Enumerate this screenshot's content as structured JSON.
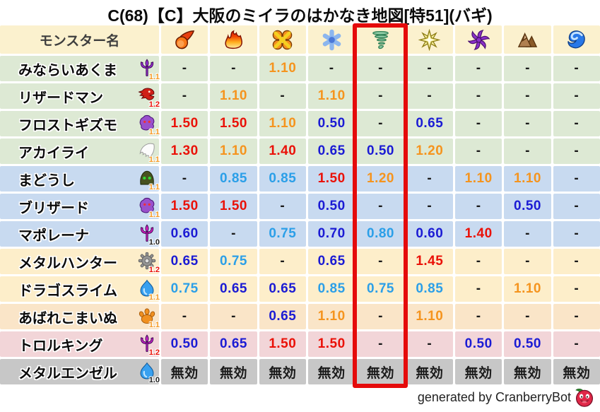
{
  "title": "C(68)【C】大阪のミイラのはかなき地図[特51](バギ)",
  "footer": {
    "text": "generated by CranberryBot",
    "logo": "cranberry-bot-logo"
  },
  "table": {
    "name_header": "モンスター名",
    "header_bg": "#fbf1ce",
    "element_columns": [
      {
        "icon": "fireball-icon"
      },
      {
        "icon": "flame-icon"
      },
      {
        "icon": "burst-icon"
      },
      {
        "icon": "snowflake-icon"
      },
      {
        "icon": "tornado-icon"
      },
      {
        "icon": "sparkle-icon"
      },
      {
        "icon": "pinwheel-icon"
      },
      {
        "icon": "mountain-icon"
      },
      {
        "icon": "wave-icon"
      }
    ],
    "highlighted_column_index": 4,
    "highlight_color": "#e50b0b",
    "immune_text": "無効",
    "value_colors": {
      "resist_strong": "#1b1bd4",
      "resist_mild": "#2b9fe8",
      "weak_mild": "#f5941e",
      "weak_strong": "#ea1108",
      "neutral": "#1a1a1a"
    },
    "rows": [
      {
        "name": "みならいあくま",
        "icon": "trident-icon",
        "icon_color": "#9a30d8",
        "badge": "1.1",
        "badge_color": "#f59a23",
        "row_color": "#dde9d4",
        "values": [
          "-",
          "-",
          "1.10",
          "-",
          "-",
          "-",
          "-",
          "-",
          "-"
        ]
      },
      {
        "name": "リザードマン",
        "icon": "dragon-icon",
        "icon_color": "#d02018",
        "badge": "1.2",
        "badge_color": "#ea1108",
        "row_color": "#dde9d4",
        "values": [
          "-",
          "1.10",
          "-",
          "1.10",
          "-",
          "-",
          "-",
          "-",
          "-"
        ]
      },
      {
        "name": "フロストギズモ",
        "icon": "ghost-icon",
        "icon_color": "#9a50cc",
        "badge": "1.1",
        "badge_color": "#f59a23",
        "row_color": "#dde9d4",
        "values": [
          "1.50",
          "1.50",
          "1.10",
          "0.50",
          "-",
          "0.65",
          "-",
          "-",
          "-"
        ]
      },
      {
        "name": "アカイライ",
        "icon": "wing-icon",
        "icon_color": "#fcfcfc",
        "badge": "1.1",
        "badge_color": "#f59a23",
        "row_color": "#dde9d4",
        "values": [
          "1.30",
          "1.10",
          "1.40",
          "0.65",
          "0.50",
          "1.20",
          "-",
          "-",
          "-"
        ]
      },
      {
        "name": "まどうし",
        "icon": "hood-icon",
        "icon_color": "#4a5524",
        "badge": "1.1",
        "badge_color": "#f59a23",
        "row_color": "#c8daf0",
        "values": [
          "-",
          "0.85",
          "0.85",
          "1.50",
          "1.20",
          "-",
          "1.10",
          "1.10",
          "-"
        ]
      },
      {
        "name": "ブリザード",
        "icon": "ghost-icon",
        "icon_color": "#9a50cc",
        "badge": "1.1",
        "badge_color": "#f59a23",
        "row_color": "#c8daf0",
        "values": [
          "1.50",
          "1.50",
          "-",
          "0.50",
          "-",
          "-",
          "-",
          "0.50",
          "-"
        ]
      },
      {
        "name": "マポレーナ",
        "icon": "trident-icon",
        "icon_color": "#e020c8",
        "badge": "1.0",
        "badge_color": "#1a1a1a",
        "row_color": "#c8daf0",
        "values": [
          "0.60",
          "-",
          "0.75",
          "0.70",
          "0.80",
          "0.60",
          "1.40",
          "-",
          "-"
        ]
      },
      {
        "name": "メタルハンター",
        "icon": "gear-icon",
        "icon_color": "#949494",
        "badge": "1.2",
        "badge_color": "#ea1108",
        "row_color": "#fdeeca",
        "values": [
          "0.65",
          "0.75",
          "-",
          "0.65",
          "-",
          "1.45",
          "-",
          "-",
          "-"
        ]
      },
      {
        "name": "ドラゴスライム",
        "icon": "slime-icon",
        "icon_color": "#38a0f0",
        "badge": "1.1",
        "badge_color": "#f59a23",
        "row_color": "#fdeeca",
        "values": [
          "0.75",
          "0.65",
          "0.65",
          "0.85",
          "0.75",
          "0.85",
          "-",
          "1.10",
          "-"
        ]
      },
      {
        "name": "あばれこまいぬ",
        "icon": "paw-icon",
        "icon_color": "#f09020",
        "badge": "1.1",
        "badge_color": "#f59a23",
        "row_color": "#fae5c8",
        "values": [
          "-",
          "-",
          "0.65",
          "1.10",
          "-",
          "1.10",
          "-",
          "-",
          "-"
        ]
      },
      {
        "name": "トロルキング",
        "icon": "trident-icon",
        "icon_color": "#cc22cc",
        "badge": "1.2",
        "badge_color": "#ea1108",
        "row_color": "#f2d5d8",
        "values": [
          "0.50",
          "0.65",
          "1.50",
          "1.50",
          "-",
          "-",
          "0.50",
          "0.50",
          "-"
        ]
      },
      {
        "name": "メタルエンゼル",
        "icon": "slime-icon",
        "icon_color": "#38a0f0",
        "badge": "1.0",
        "badge_color": "#1a1a1a",
        "row_color": "#c7c7c7",
        "values": [
          "無効",
          "無効",
          "無効",
          "無効",
          "無効",
          "無効",
          "無効",
          "無効",
          "無効"
        ]
      }
    ]
  },
  "chart_data": {
    "type": "table",
    "title": "C(68)【C】大阪のミイラのはかなき地図[特51](バギ)",
    "columns": [
      "モンスター名",
      "fireball",
      "flame",
      "burst",
      "snowflake",
      "tornado",
      "sparkle",
      "pinwheel",
      "mountain",
      "wave"
    ],
    "highlighted_column": "tornado",
    "rows": [
      [
        "みならいあくま (1.1)",
        "-",
        "-",
        "1.10",
        "-",
        "-",
        "-",
        "-",
        "-",
        "-"
      ],
      [
        "リザードマン (1.2)",
        "-",
        "1.10",
        "-",
        "1.10",
        "-",
        "-",
        "-",
        "-",
        "-"
      ],
      [
        "フロストギズモ (1.1)",
        "1.50",
        "1.50",
        "1.10",
        "0.50",
        "-",
        "0.65",
        "-",
        "-",
        "-"
      ],
      [
        "アカイライ (1.1)",
        "1.30",
        "1.10",
        "1.40",
        "0.65",
        "0.50",
        "1.20",
        "-",
        "-",
        "-"
      ],
      [
        "まどうし (1.1)",
        "-",
        "0.85",
        "0.85",
        "1.50",
        "1.20",
        "-",
        "1.10",
        "1.10",
        "-"
      ],
      [
        "ブリザード (1.1)",
        "1.50",
        "1.50",
        "-",
        "0.50",
        "-",
        "-",
        "-",
        "0.50",
        "-"
      ],
      [
        "マポレーナ (1.0)",
        "0.60",
        "-",
        "0.75",
        "0.70",
        "0.80",
        "0.60",
        "1.40",
        "-",
        "-"
      ],
      [
        "メタルハンター (1.2)",
        "0.65",
        "0.75",
        "-",
        "0.65",
        "-",
        "1.45",
        "-",
        "-",
        "-"
      ],
      [
        "ドラゴスライム (1.1)",
        "0.75",
        "0.65",
        "0.65",
        "0.85",
        "0.75",
        "0.85",
        "-",
        "1.10",
        "-"
      ],
      [
        "あばれこまいぬ (1.1)",
        "-",
        "-",
        "0.65",
        "1.10",
        "-",
        "1.10",
        "-",
        "-",
        "-"
      ],
      [
        "トロルキング (1.2)",
        "0.50",
        "0.65",
        "1.50",
        "1.50",
        "-",
        "-",
        "0.50",
        "0.50",
        "-"
      ],
      [
        "メタルエンゼル (1.0)",
        "無効",
        "無効",
        "無効",
        "無効",
        "無効",
        "無効",
        "無効",
        "無効",
        "無効"
      ]
    ]
  }
}
